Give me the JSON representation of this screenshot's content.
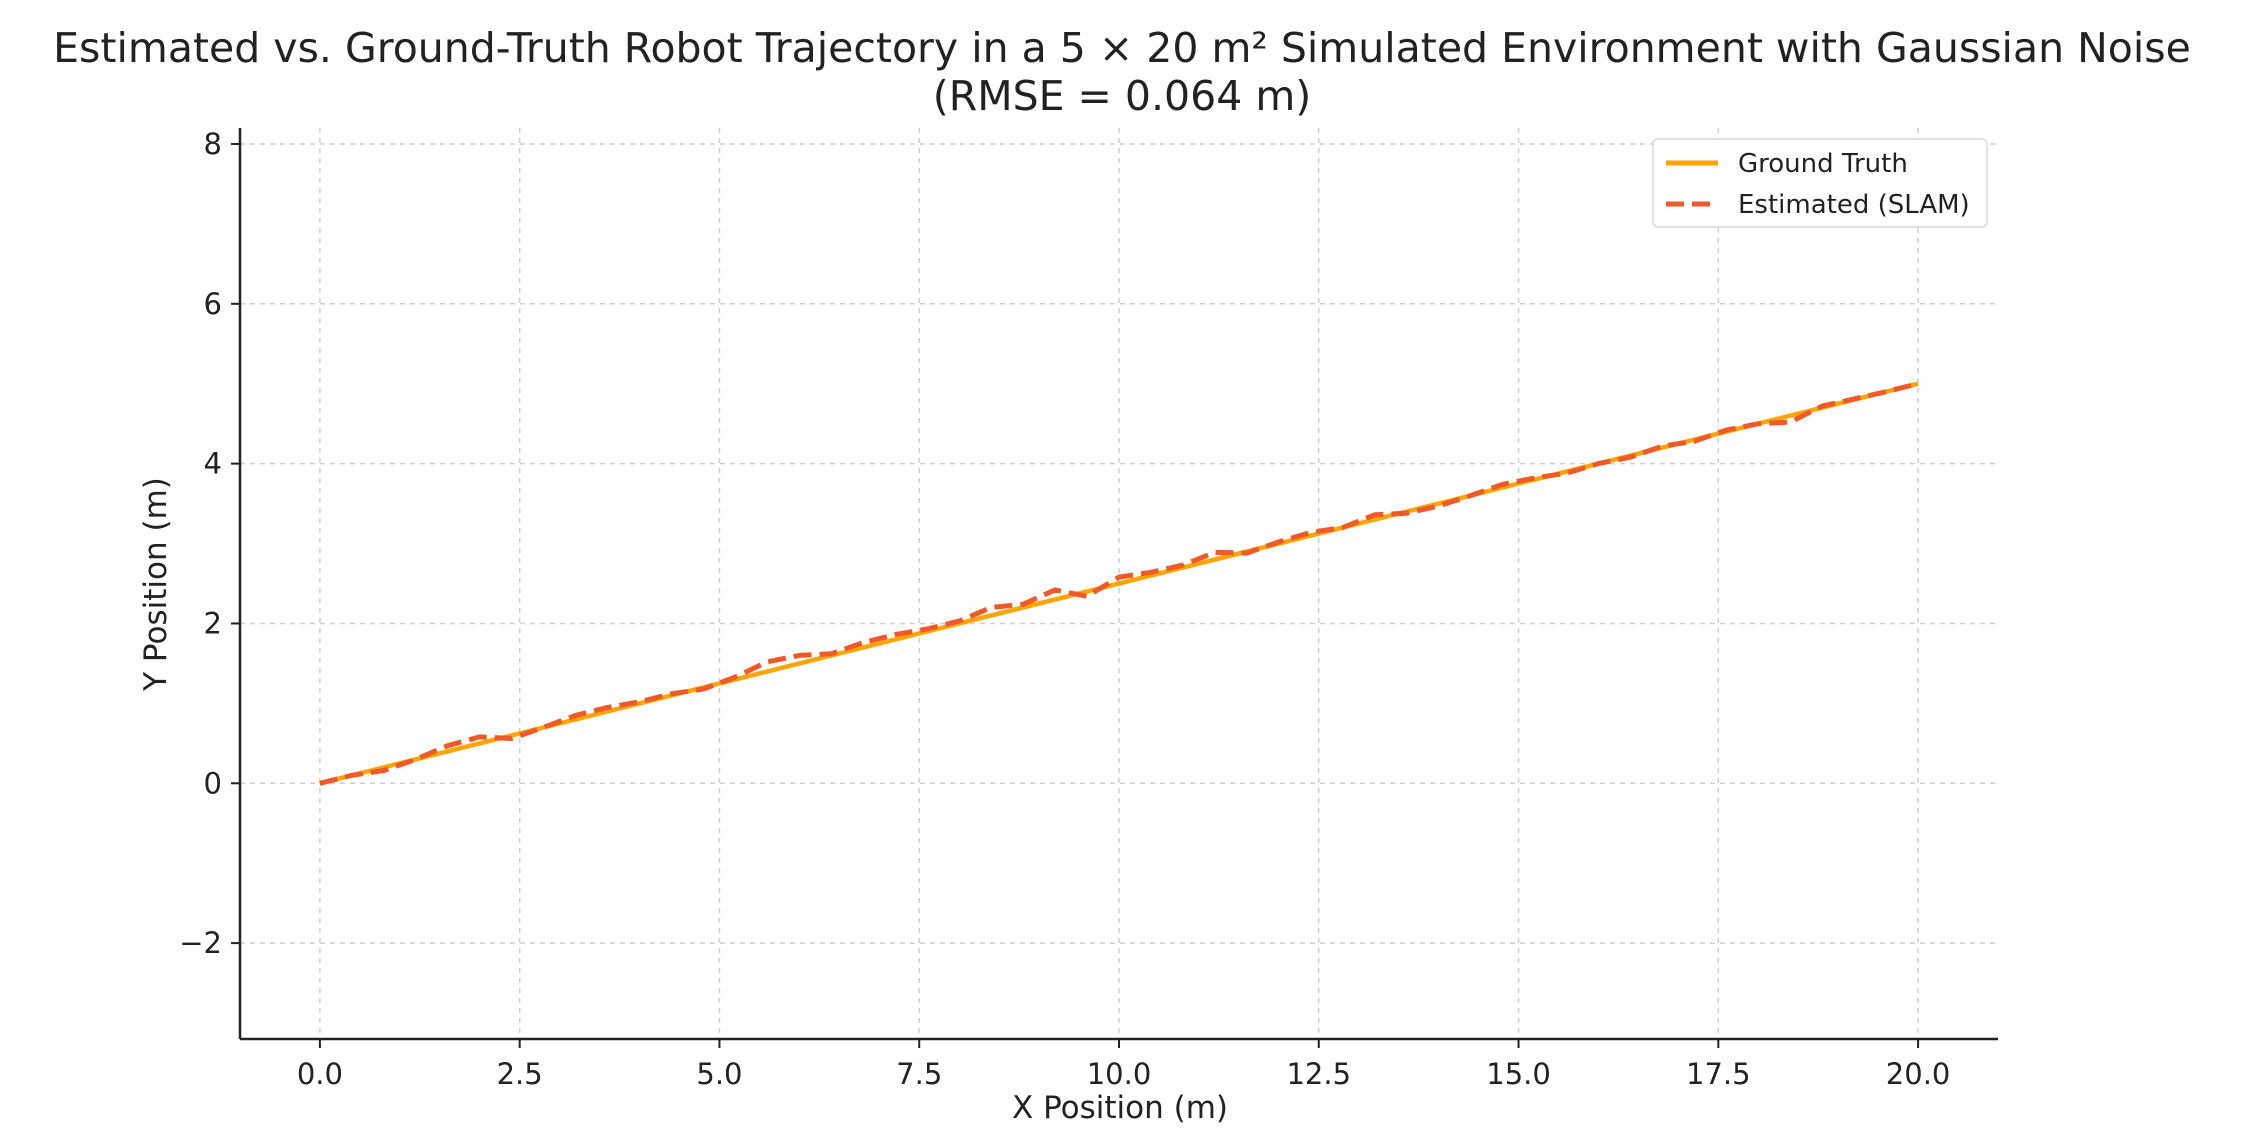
{
  "chart_data": {
    "type": "line",
    "title": "Estimated vs. Ground-Truth Robot Trajectory in a 5 × 20 m² Simulated Environment with Gaussian Noise",
    "subtitle": "(RMSE = 0.064 m)",
    "xlabel": "X Position (m)",
    "ylabel": "Y Position (m)",
    "xlim": [
      -1.0,
      21.0
    ],
    "ylim": [
      -3.2,
      8.2
    ],
    "xticks": [
      0.0,
      2.5,
      5.0,
      7.5,
      10.0,
      12.5,
      15.0,
      17.5,
      20.0
    ],
    "xtick_labels": [
      "0.0",
      "2.5",
      "5.0",
      "7.5",
      "10.0",
      "12.5",
      "15.0",
      "17.5",
      "20.0"
    ],
    "yticks": [
      -2,
      0,
      2,
      4,
      6,
      8
    ],
    "ytick_labels": [
      "−2",
      "0",
      "2",
      "4",
      "6",
      "8"
    ],
    "grid": true,
    "legend_position": "top-right",
    "series": [
      {
        "name": "Ground Truth",
        "color": "#ffa500",
        "style": "solid",
        "x": [
          0.0,
          20.0
        ],
        "y": [
          0.0,
          5.0
        ]
      },
      {
        "name": "Estimated (SLAM)",
        "color": "#f05a28",
        "style": "dashed",
        "x": [
          0.0,
          0.4,
          0.8,
          1.2,
          1.6,
          2.0,
          2.4,
          2.8,
          3.2,
          3.6,
          4.0,
          4.4,
          4.8,
          5.2,
          5.6,
          6.0,
          6.4,
          6.8,
          7.2,
          7.6,
          8.0,
          8.4,
          8.8,
          9.2,
          9.6,
          10.0,
          10.4,
          10.8,
          11.2,
          11.6,
          12.0,
          12.4,
          12.8,
          13.2,
          13.6,
          14.0,
          14.4,
          14.8,
          15.2,
          15.6,
          16.0,
          16.4,
          16.8,
          17.2,
          17.6,
          18.0,
          18.4,
          18.8,
          19.2,
          19.6,
          20.0
        ],
        "y": [
          0.0,
          0.1,
          0.16,
          0.3,
          0.47,
          0.58,
          0.56,
          0.7,
          0.85,
          0.95,
          1.02,
          1.12,
          1.18,
          1.33,
          1.52,
          1.6,
          1.62,
          1.76,
          1.86,
          1.93,
          2.03,
          2.2,
          2.24,
          2.42,
          2.34,
          2.58,
          2.64,
          2.73,
          2.89,
          2.88,
          3.02,
          3.14,
          3.2,
          3.36,
          3.38,
          3.47,
          3.6,
          3.74,
          3.82,
          3.88,
          4.0,
          4.08,
          4.22,
          4.28,
          4.42,
          4.5,
          4.52,
          4.72,
          4.81,
          4.9,
          5.0
        ]
      }
    ]
  }
}
